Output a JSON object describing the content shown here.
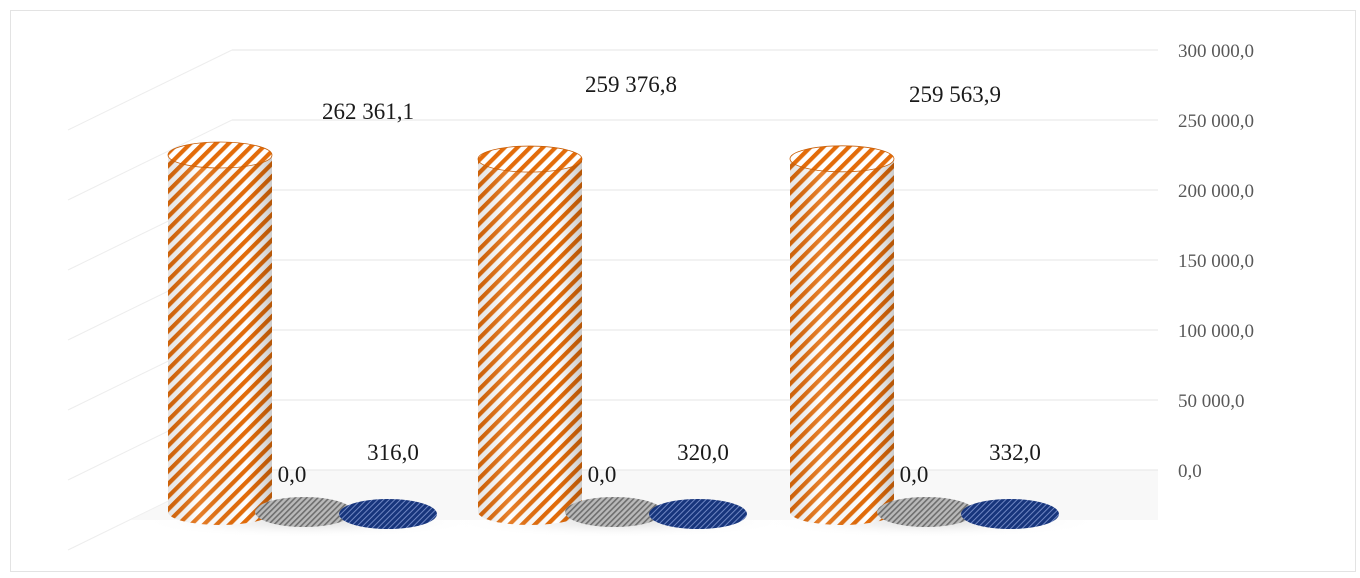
{
  "chart_data": {
    "type": "bar",
    "variant": "3d-cylinder",
    "title": "",
    "xlabel": "",
    "ylabel": "",
    "ylim": [
      0,
      300000
    ],
    "y_ticks": [
      {
        "value": 0,
        "label": "0,0"
      },
      {
        "value": 50000,
        "label": "50 000,0"
      },
      {
        "value": 100000,
        "label": "100 000,0"
      },
      {
        "value": 150000,
        "label": "150 000,0"
      },
      {
        "value": 200000,
        "label": "200 000,0"
      },
      {
        "value": 250000,
        "label": "250 000,0"
      },
      {
        "value": 300000,
        "label": "300 000,0"
      }
    ],
    "y_axis_position": "right",
    "grid": true,
    "legend": "none",
    "categories": [
      "",
      "",
      ""
    ],
    "series": [
      {
        "color": "#e36c0a",
        "pattern": "diagonal-stripes",
        "values": [
          262361.1,
          259376.8,
          259563.9
        ],
        "labels": [
          "262 361,1",
          "259 376,8",
          "259 563,9"
        ]
      },
      {
        "color": "#8c8c8c",
        "pattern": "fine-dots",
        "values": [
          0,
          0,
          0
        ],
        "labels": [
          "0,0",
          "0,0",
          "0,0"
        ]
      },
      {
        "color": "#1f3f8a",
        "pattern": "fine-dots",
        "values": [
          316,
          320,
          332
        ],
        "labels": [
          "316,0",
          "320,0",
          "332,0"
        ]
      }
    ]
  }
}
